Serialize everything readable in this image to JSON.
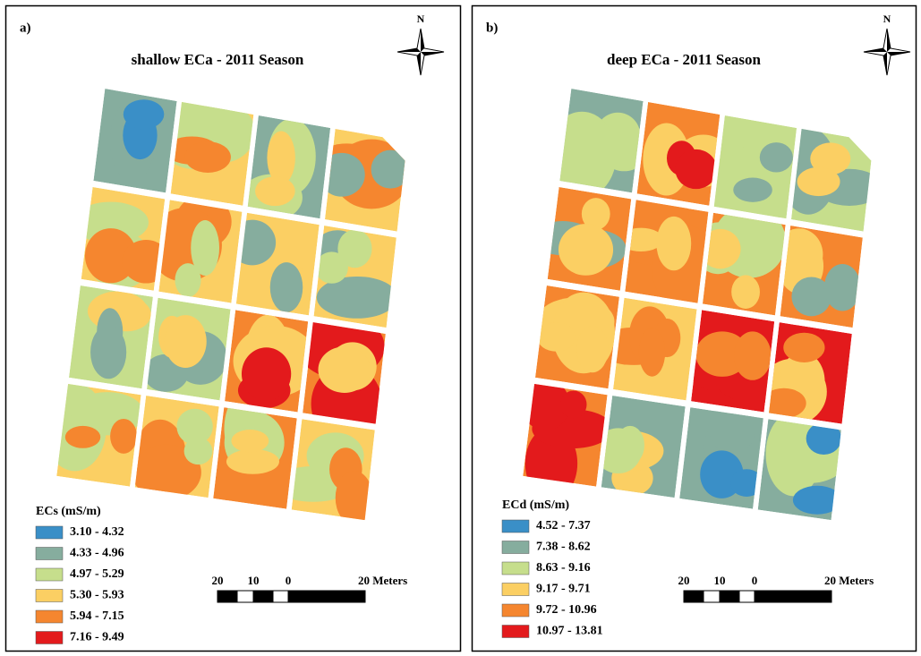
{
  "panels": [
    {
      "label": "a)",
      "title": "shallow ECa - 2011 Season",
      "north": "N",
      "legend": {
        "title": "ECs (mS/m)",
        "items": [
          {
            "label": "3.10 - 4.32",
            "color": "#3a8fc7"
          },
          {
            "label": "4.33 - 4.96",
            "color": "#86ad9e"
          },
          {
            "label": "4.97 - 5.29",
            "color": "#c6de8c"
          },
          {
            "label": "5.30 - 5.93",
            "color": "#fbcf63"
          },
          {
            "label": "5.94 - 7.15",
            "color": "#f5862f"
          },
          {
            "label": "7.16 - 9.49",
            "color": "#e31a1c"
          }
        ]
      },
      "scale": {
        "labels": [
          "20",
          "10",
          "0",
          "20 Meters"
        ]
      }
    },
    {
      "label": "b)",
      "title": "deep ECa - 2011 Season",
      "north": "N",
      "legend": {
        "title": "ECd (mS/m)",
        "items": [
          {
            "label": "4.52 - 7.37",
            "color": "#3a8fc7"
          },
          {
            "label": "7.38 - 8.62",
            "color": "#86ad9e"
          },
          {
            "label": "8.63 - 9.16",
            "color": "#c6de8c"
          },
          {
            "label": "9.17 - 9.71",
            "color": "#fbcf63"
          },
          {
            "label": "9.72 - 10.96",
            "color": "#f5862f"
          },
          {
            "label": "10.97 - 13.81",
            "color": "#e31a1c"
          }
        ]
      },
      "scale": {
        "labels": [
          "20",
          "10",
          "0",
          "20 Meters"
        ]
      }
    }
  ]
}
